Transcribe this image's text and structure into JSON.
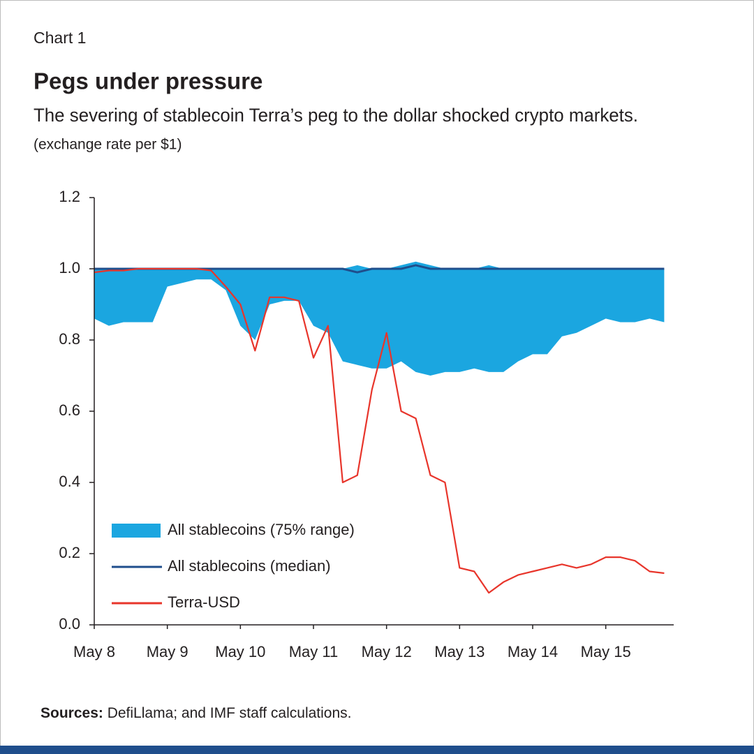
{
  "header": {
    "kicker": "Chart 1",
    "title": "Pegs under pressure",
    "subtitle": "The severing of stablecoin Terra’s peg to the dollar shocked crypto markets.",
    "unit": "(exchange rate per $1)"
  },
  "chart_data": {
    "type": "line",
    "x": [
      8.0,
      8.2,
      8.4,
      8.6,
      8.8,
      9.0,
      9.2,
      9.4,
      9.6,
      9.8,
      10.0,
      10.2,
      10.4,
      10.6,
      10.8,
      11.0,
      11.2,
      11.4,
      11.6,
      11.8,
      12.0,
      12.2,
      12.4,
      12.6,
      12.8,
      13.0,
      13.2,
      13.4,
      13.6,
      13.8,
      14.0,
      14.2,
      14.4,
      14.6,
      14.8,
      15.0,
      15.2,
      15.4,
      15.6,
      15.8
    ],
    "series": [
      {
        "name": "All stablecoins (75% range)",
        "kind": "range",
        "color": "#1ba6e0",
        "low": [
          0.86,
          0.84,
          0.85,
          0.85,
          0.85,
          0.95,
          0.96,
          0.97,
          0.97,
          0.94,
          0.84,
          0.8,
          0.9,
          0.91,
          0.91,
          0.84,
          0.82,
          0.74,
          0.73,
          0.72,
          0.72,
          0.74,
          0.71,
          0.7,
          0.71,
          0.71,
          0.72,
          0.71,
          0.71,
          0.74,
          0.76,
          0.76,
          0.81,
          0.82,
          0.84,
          0.86,
          0.85,
          0.85,
          0.86,
          0.85
        ],
        "high": [
          1.0,
          1.0,
          1.0,
          1.0,
          1.0,
          1.0,
          1.0,
          1.0,
          1.0,
          1.0,
          1.0,
          1.0,
          1.0,
          1.0,
          1.0,
          1.0,
          1.0,
          1.0,
          1.01,
          1.0,
          1.0,
          1.01,
          1.02,
          1.01,
          1.0,
          1.0,
          1.0,
          1.01,
          1.0,
          1.0,
          1.0,
          1.0,
          1.0,
          1.0,
          1.0,
          1.0,
          1.0,
          1.0,
          1.0,
          1.0
        ]
      },
      {
        "name": "All stablecoins (median)",
        "kind": "line",
        "color": "#1f4e8c",
        "values": [
          1.0,
          1.0,
          1.0,
          1.0,
          1.0,
          1.0,
          1.0,
          1.0,
          1.0,
          1.0,
          1.0,
          1.0,
          1.0,
          1.0,
          1.0,
          1.0,
          1.0,
          1.0,
          0.99,
          1.0,
          1.0,
          1.0,
          1.01,
          1.0,
          1.0,
          1.0,
          1.0,
          1.0,
          1.0,
          1.0,
          1.0,
          1.0,
          1.0,
          1.0,
          1.0,
          1.0,
          1.0,
          1.0,
          1.0,
          1.0
        ]
      },
      {
        "name": "Terra-USD",
        "kind": "line",
        "color": "#e8352b",
        "values": [
          0.99,
          0.995,
          0.995,
          1.0,
          1.0,
          1.0,
          1.0,
          1.0,
          0.995,
          0.95,
          0.9,
          0.77,
          0.92,
          0.92,
          0.91,
          0.75,
          0.84,
          0.4,
          0.42,
          0.66,
          0.82,
          0.6,
          0.58,
          0.42,
          0.4,
          0.16,
          0.15,
          0.09,
          0.12,
          0.14,
          0.15,
          0.16,
          0.17,
          0.16,
          0.17,
          0.19,
          0.19,
          0.18,
          0.15,
          0.145
        ]
      }
    ],
    "xlim": [
      8,
      15.93
    ],
    "xticks": [
      {
        "value": 8,
        "label": "May 8"
      },
      {
        "value": 9,
        "label": "May 9"
      },
      {
        "value": 10,
        "label": "May 10"
      },
      {
        "value": 11,
        "label": "May 11"
      },
      {
        "value": 12,
        "label": "May 12"
      },
      {
        "value": 13,
        "label": "May 13"
      },
      {
        "value": 14,
        "label": "May 14"
      },
      {
        "value": 15,
        "label": "May 15"
      }
    ],
    "ylim": [
      0,
      1.2
    ],
    "yticks": [
      {
        "value": 0,
        "label": "0.0"
      },
      0.2,
      0.4,
      0.6,
      0.8,
      {
        "value": 1,
        "label": "1.0"
      },
      1.2
    ],
    "grid": false,
    "legend": "lower left"
  },
  "source": {
    "label": "Sources:",
    "text": " DefiLlama; and IMF staff calculations."
  }
}
